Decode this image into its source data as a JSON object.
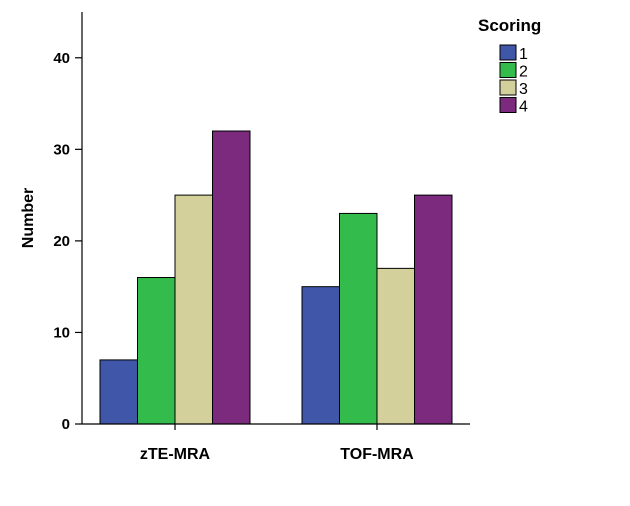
{
  "chart_data": {
    "type": "bar",
    "categories": [
      "zTE-MRA",
      "TOF-MRA"
    ],
    "series": [
      {
        "name": "1",
        "values": [
          7,
          15
        ],
        "color": "#3F56A9"
      },
      {
        "name": "2",
        "values": [
          16,
          23
        ],
        "color": "#33BB4B"
      },
      {
        "name": "3",
        "values": [
          25,
          17
        ],
        "color": "#D4D09B"
      },
      {
        "name": "4",
        "values": [
          32,
          25
        ],
        "color": "#7B2A7E"
      }
    ],
    "title": "",
    "xlabel": "",
    "ylabel": "Number",
    "ylim": [
      0,
      45
    ],
    "yticks": [
      0,
      10,
      20,
      30,
      40
    ],
    "grid": false,
    "legend": {
      "title": "Scoring",
      "position": "top-right"
    }
  }
}
